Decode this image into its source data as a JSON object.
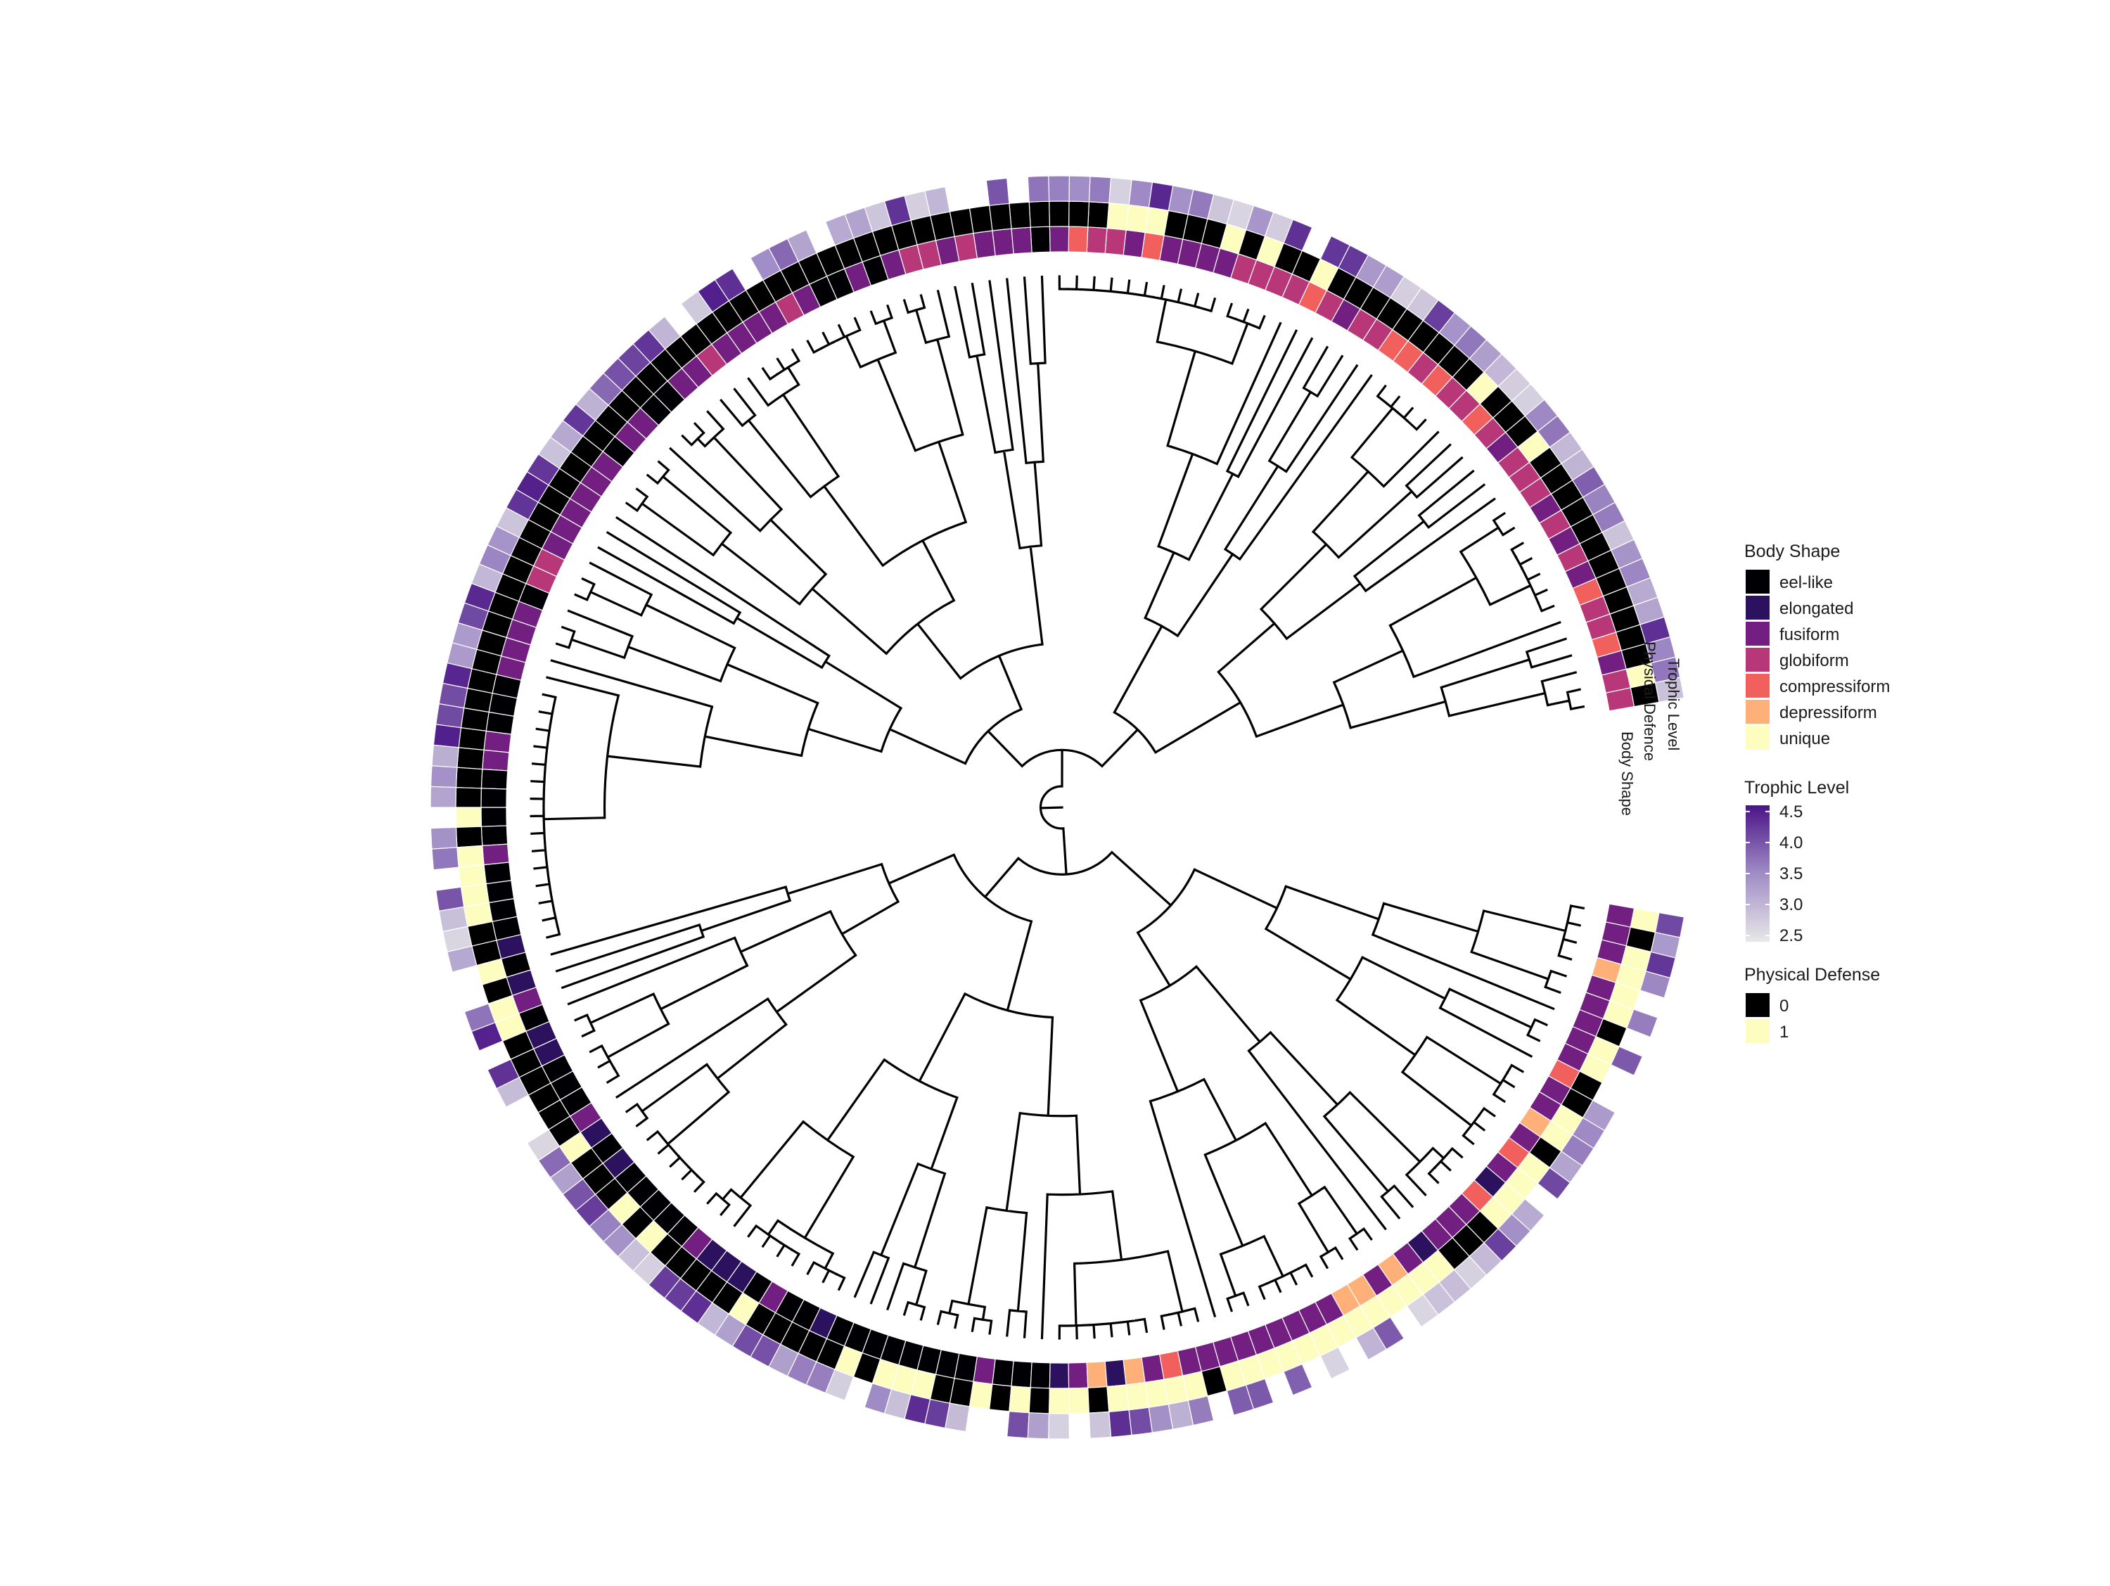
{
  "figure": {
    "ring_labels": {
      "inner": "Body Shape",
      "middle": "Physical Defence",
      "outer": "Trophic Level"
    },
    "legends": {
      "body_shape": {
        "title": "Body Shape",
        "items": [
          {
            "label": "eel-like",
            "color": "#000004"
          },
          {
            "label": "elongated",
            "color": "#2c115f"
          },
          {
            "label": "fusiform",
            "color": "#721f81"
          },
          {
            "label": "globiform",
            "color": "#b73779"
          },
          {
            "label": "compressiform",
            "color": "#f1605d"
          },
          {
            "label": "depressiform",
            "color": "#feb078"
          },
          {
            "label": "unique",
            "color": "#fcfdbf"
          }
        ]
      },
      "trophic_level": {
        "title": "Trophic Level",
        "ticks": [
          "4.5",
          "4.0",
          "3.5",
          "3.0",
          "2.5"
        ],
        "range": [
          2.4,
          4.6
        ],
        "low_color": "#e8e8e8",
        "high_color": "#4a1486"
      },
      "physical_defense": {
        "title": "Physical Defense",
        "items": [
          {
            "label": "0",
            "color": "#000000"
          },
          {
            "label": "1",
            "color": "#fcfdbf"
          }
        ]
      }
    },
    "tree": {
      "tip_count": 180,
      "layout": "circular",
      "gap_sectors": [
        "right",
        "left",
        "bottom-left",
        "top"
      ]
    }
  }
}
